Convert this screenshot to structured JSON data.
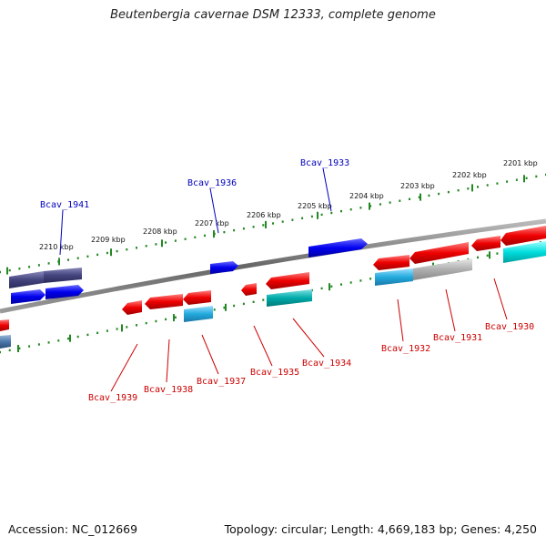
{
  "title": "Beutenbergia cavernae DSM 12333, complete genome",
  "footer": {
    "accession": "Accession: NC_012669",
    "summary": "Topology: circular; Length: 4,669,183 bp; Genes: 4,250"
  },
  "colors": {
    "forward_gene": "#0000ee",
    "reverse_gene": "#ee0000",
    "rna_cyan": "#00cccc",
    "rna_light_blue": "#22aadd",
    "teal": "#00aaaa",
    "pseudo_gray": "#aaaaaa",
    "dark_slate": "#3a3a7a",
    "ruler": "#228822",
    "backbone": "#777777"
  },
  "ruler_ticks": [
    {
      "kbp": 2210,
      "label": "2210 kbp"
    },
    {
      "kbp": 2209,
      "label": "2209 kbp"
    },
    {
      "kbp": 2208,
      "label": "2208 kbp"
    },
    {
      "kbp": 2207,
      "label": "2207 kbp"
    },
    {
      "kbp": 2206,
      "label": "2206 kbp"
    },
    {
      "kbp": 2205,
      "label": "2205 kbp"
    },
    {
      "kbp": 2204,
      "label": "2204 kbp"
    },
    {
      "kbp": 2203,
      "label": "2203 kbp"
    },
    {
      "kbp": 2202,
      "label": "2202 kbp"
    },
    {
      "kbp": 2201,
      "label": "2201 kbp"
    }
  ],
  "gene_labels": {
    "forward": [
      {
        "name": "Bcav_1941"
      },
      {
        "name": "Bcav_1936"
      },
      {
        "name": "Bcav_1933"
      }
    ],
    "reverse": [
      {
        "name": "Bcav_1939"
      },
      {
        "name": "Bcav_1938"
      },
      {
        "name": "Bcav_1937"
      },
      {
        "name": "Bcav_1935"
      },
      {
        "name": "Bcav_1934"
      },
      {
        "name": "Bcav_1932"
      },
      {
        "name": "Bcav_1931"
      },
      {
        "name": "Bcav_1930"
      }
    ]
  }
}
